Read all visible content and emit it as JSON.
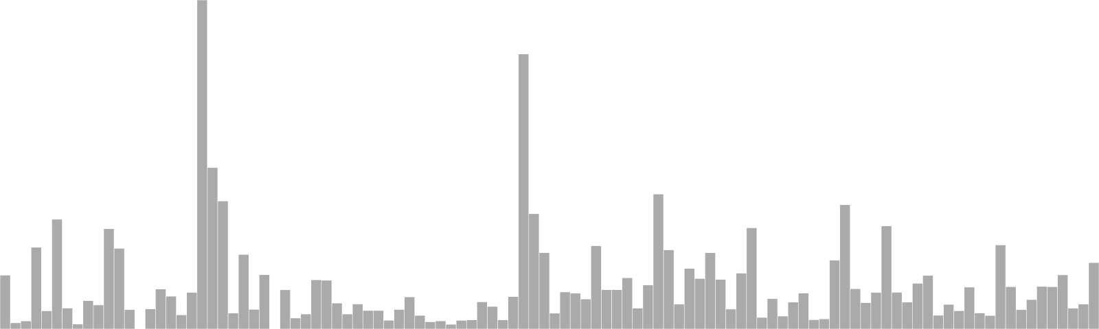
{
  "chart_data": {
    "type": "bar",
    "title": "",
    "xlabel": "",
    "ylabel": "",
    "grid": false,
    "legend": "none",
    "bar_color": "#aaaaaa",
    "bar_edge_color": "#ffffff",
    "ylim": [
      0,
      480
    ],
    "values": [
      78.5,
      9.0,
      11.7,
      119.2,
      26.5,
      160.1,
      30.5,
      7.2,
      41.3,
      35.1,
      146.3,
      117.6,
      28.2,
      0,
      29.3,
      58.3,
      47.8,
      20.6,
      53.4,
      480.0,
      235.5,
      186.7,
      23.2,
      108.7,
      28.6,
      79.2,
      0,
      57.2,
      16.0,
      21.9,
      71.7,
      71.1,
      37.8,
      21.9,
      36.5,
      27.0,
      27.0,
      12.7,
      28.5,
      46.8,
      19.8,
      10.5,
      11.8,
      6.8,
      12.6,
      13.3,
      39.6,
      32.9,
      13.3,
      47.3,
      401.2,
      168.2,
      111.4,
      23.1,
      54.0,
      52.2,
      43.7,
      121.4,
      57.3,
      57.3,
      74.7,
      30.4,
      64.2,
      196.8,
      115.4,
      36.2,
      88.4,
      73.6,
      111.3,
      72.3,
      29.1,
      81.4,
      147.6,
      16.9,
      44.2,
      18.9,
      39.2,
      52.4,
      13.5,
      14.7,
      100.4,
      181.3,
      58.7,
      38.4,
      53.3,
      150.4,
      53.5,
      39.2,
      66.6,
      78.1,
      20.0,
      35.9,
      26.6,
      61.1,
      23.4,
      19.6,
      122.6,
      61.7,
      28.2,
      42.9,
      62.1,
      61.6,
      79.0,
      30.3,
      36.3,
      96.8
    ]
  }
}
